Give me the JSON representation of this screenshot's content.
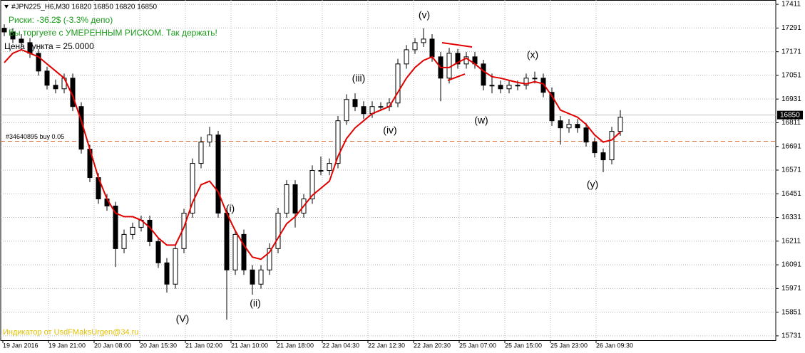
{
  "chart_data": {
    "type": "candlestick",
    "header": "#JPN225_H6,M30  16820 16850 16820 16850",
    "info_lines": [
      "Риски: -36.2$ (-3.3% депо)",
      "Вы торгуете с УМЕРЕННЫМ РИСКОМ. Так держать!",
      "Цена пункта = 25.0000"
    ],
    "watermark": "Индикатор от UsdFMaksUrgen@34.ru",
    "x_labels": [
      "19 Jan 2016",
      "19 Jan 21:00",
      "20 Jan 08:00",
      "20 Jan 15:30",
      "21 Jan 02:00",
      "21 Jan 10:00",
      "21 Jan 18:00",
      "22 Jan 04:30",
      "22 Jan 12:30",
      "22 Jan 20:30",
      "25 Jan 07:00",
      "25 Jan 15:00",
      "25 Jan 23:00",
      "26 Jan 09:30"
    ],
    "ylim": [
      15709,
      17433
    ],
    "yticks": [
      17411,
      17291,
      17171,
      17051,
      16931,
      16811,
      16691,
      16571,
      16451,
      16331,
      16211,
      16091,
      15971,
      15851,
      15731
    ],
    "grid": true,
    "candle_colors": {
      "up": "#ffffff",
      "down": "#000000",
      "wick": "#000000"
    },
    "ohlc": [
      [
        17290,
        17310,
        17250,
        17271
      ],
      [
        17271,
        17290,
        17215,
        17235
      ],
      [
        17235,
        17260,
        17195,
        17217
      ],
      [
        17217,
        17240,
        17140,
        17163
      ],
      [
        17163,
        17185,
        17050,
        17073
      ],
      [
        17073,
        17095,
        16980,
        17001
      ],
      [
        17001,
        17030,
        16960,
        16983
      ],
      [
        16983,
        17060,
        16960,
        17037
      ],
      [
        17037,
        17060,
        16870,
        16893
      ],
      [
        16893,
        16915,
        16655,
        16677
      ],
      [
        16677,
        16700,
        16510,
        16533
      ],
      [
        16533,
        16555,
        16400,
        16425
      ],
      [
        16425,
        16450,
        16365,
        16389
      ],
      [
        16389,
        16410,
        16080,
        16173
      ],
      [
        16173,
        16270,
        16150,
        16245
      ],
      [
        16245,
        16305,
        16220,
        16281
      ],
      [
        16281,
        16340,
        16260,
        16317
      ],
      [
        16317,
        16340,
        16185,
        16209
      ],
      [
        16209,
        16230,
        16075,
        16101
      ],
      [
        16101,
        16125,
        15950,
        15993
      ],
      [
        15993,
        16195,
        15970,
        16173
      ],
      [
        16173,
        16375,
        16150,
        16353
      ],
      [
        16353,
        16630,
        16330,
        16605
      ],
      [
        16605,
        16740,
        16580,
        16713
      ],
      [
        16713,
        16790,
        16690,
        16749
      ],
      [
        16749,
        16770,
        16330,
        16353
      ],
      [
        16353,
        16380,
        15813,
        16065
      ],
      [
        16065,
        16270,
        16040,
        16245
      ],
      [
        16245,
        16270,
        16040,
        16065
      ],
      [
        16065,
        16090,
        15940,
        15993
      ],
      [
        15993,
        16090,
        15970,
        16065
      ],
      [
        16065,
        16200,
        16040,
        16173
      ],
      [
        16173,
        16380,
        16150,
        16353
      ],
      [
        16353,
        16520,
        16330,
        16497
      ],
      [
        16497,
        16520,
        16280,
        16353
      ],
      [
        16353,
        16450,
        16330,
        16425
      ],
      [
        16425,
        16595,
        16400,
        16569
      ],
      [
        16569,
        16640,
        16545,
        16569
      ],
      [
        16569,
        16630,
        16545,
        16605
      ],
      [
        16605,
        16845,
        16580,
        16821
      ],
      [
        16821,
        16955,
        16800,
        16929
      ],
      [
        16929,
        16960,
        16870,
        16893
      ],
      [
        16893,
        16920,
        16830,
        16857
      ],
      [
        16857,
        16920,
        16835,
        16893
      ],
      [
        16893,
        16915,
        16870,
        16893
      ],
      [
        16893,
        16935,
        16870,
        16911
      ],
      [
        16911,
        17135,
        16890,
        17109
      ],
      [
        17109,
        17205,
        17085,
        17181
      ],
      [
        17181,
        17240,
        17160,
        17217
      ],
      [
        17217,
        17290,
        17195,
        17235
      ],
      [
        17235,
        17260,
        17120,
        17145
      ],
      [
        17145,
        17170,
        16920,
        17037
      ],
      [
        17037,
        17190,
        17010,
        17163
      ],
      [
        17163,
        17185,
        17085,
        17109
      ],
      [
        17109,
        17170,
        17085,
        17145
      ],
      [
        17145,
        17170,
        17085,
        17109
      ],
      [
        17109,
        17130,
        16975,
        17001
      ],
      [
        17001,
        17060,
        16960,
        17001
      ],
      [
        17001,
        17025,
        16960,
        16983
      ],
      [
        16983,
        17025,
        16960,
        17001
      ],
      [
        17001,
        17025,
        16975,
        17001
      ],
      [
        17001,
        17060,
        16980,
        17037
      ],
      [
        17037,
        17070,
        17010,
        17037
      ],
      [
        17037,
        17060,
        16940,
        16965
      ],
      [
        16965,
        16990,
        16795,
        16821
      ],
      [
        16821,
        16845,
        16700,
        16785
      ],
      [
        16785,
        16830,
        16760,
        16803
      ],
      [
        16803,
        16830,
        16760,
        16785
      ],
      [
        16785,
        16810,
        16690,
        16713
      ],
      [
        16713,
        16735,
        16635,
        16659
      ],
      [
        16659,
        16680,
        16560,
        16623
      ],
      [
        16623,
        16790,
        16600,
        16767
      ],
      [
        16767,
        16875,
        16745,
        16839
      ]
    ],
    "ma": {
      "color": "#e00000",
      "values": [
        17116,
        17163,
        17181,
        17163,
        17145,
        17109,
        17073,
        17037,
        16947,
        16821,
        16677,
        16533,
        16425,
        16353,
        16335,
        16335,
        16317,
        16281,
        16227,
        16191,
        16191,
        16281,
        16407,
        16497,
        16515,
        16461,
        16353,
        16263,
        16191,
        16130,
        16119,
        16155,
        16227,
        16299,
        16335,
        16389,
        16443,
        16479,
        16515,
        16641,
        16731,
        16785,
        16821,
        16857,
        16875,
        16893,
        16965,
        17037,
        17091,
        17127,
        17145,
        17091,
        17091,
        17116,
        17138,
        17109,
        17073,
        17044,
        17037,
        17026,
        17015,
        17008,
        17019,
        17008,
        16947,
        16875,
        16857,
        16839,
        16803,
        16749,
        16713,
        16724,
        16764
      ]
    },
    "current_price": {
      "value": 16850,
      "color": "#c0c0c0"
    },
    "order": {
      "label": "#34640895 buy 0.05",
      "price": 16717,
      "color": "#e0703a"
    },
    "annotations": [
      "(V)",
      "(i)",
      "(ii)",
      "(iii)",
      "(iv)",
      "(v)",
      "(w)",
      "(x)",
      "(y)"
    ]
  }
}
